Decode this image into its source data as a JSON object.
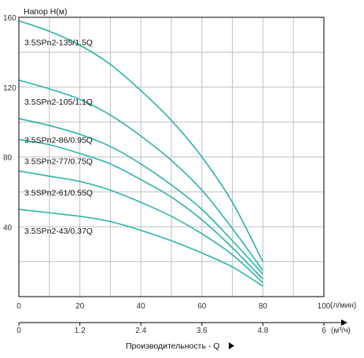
{
  "chart_data": {
    "type": "line",
    "ylabel": "Напор H(м)",
    "xlabel": "Производительность - Q",
    "x_unit": "(л/мин)",
    "x2_unit": "(м³/ч)",
    "xlim": [
      0,
      100
    ],
    "ylim": [
      0,
      160
    ],
    "x_ticks": [
      "0",
      "20",
      "40",
      "60",
      "80",
      "100"
    ],
    "x2_ticks": [
      "0",
      "1.2",
      "2.4",
      "3.6",
      "4.8",
      "6"
    ],
    "y_ticks": [
      "40",
      "80",
      "120",
      "160"
    ],
    "grid": true,
    "colors": {
      "curve": "#2bb3a8",
      "grid": "#bfbfbf",
      "frame": "#000000"
    },
    "series": [
      {
        "name": "3.5SPn2-135/1.5Q",
        "x": [
          0,
          10,
          20,
          30,
          40,
          50,
          60,
          70,
          80
        ],
        "y": [
          158,
          152,
          144,
          133,
          118,
          101,
          80,
          54,
          20
        ]
      },
      {
        "name": "3.5SPn2-105/1.1Q",
        "x": [
          0,
          10,
          20,
          30,
          40,
          50,
          60,
          70,
          80
        ],
        "y": [
          124,
          119,
          113,
          104,
          92,
          78,
          61,
          39,
          15
        ]
      },
      {
        "name": "3.5SPn2-86/0.95Q",
        "x": [
          0,
          10,
          20,
          30,
          40,
          50,
          60,
          70,
          80
        ],
        "y": [
          102,
          98,
          93,
          86,
          76,
          64,
          50,
          32,
          13
        ]
      },
      {
        "name": "3.5SPn2-77/0.75Q",
        "x": [
          0,
          10,
          20,
          30,
          40,
          50,
          60,
          70,
          80
        ],
        "y": [
          90,
          87,
          82,
          76,
          67,
          57,
          44,
          28,
          10
        ]
      },
      {
        "name": "3.5SPn2-61/0.55Q",
        "x": [
          0,
          10,
          20,
          30,
          40,
          50,
          60,
          70,
          80
        ],
        "y": [
          72,
          69,
          66,
          61,
          54,
          46,
          36,
          24,
          8
        ]
      },
      {
        "name": "3.5SPn2-43/0.37Q",
        "x": [
          0,
          10,
          20,
          30,
          40,
          50,
          60,
          70,
          80
        ],
        "y": [
          50,
          48,
          46,
          43,
          38,
          32,
          25,
          17,
          6
        ]
      }
    ]
  }
}
